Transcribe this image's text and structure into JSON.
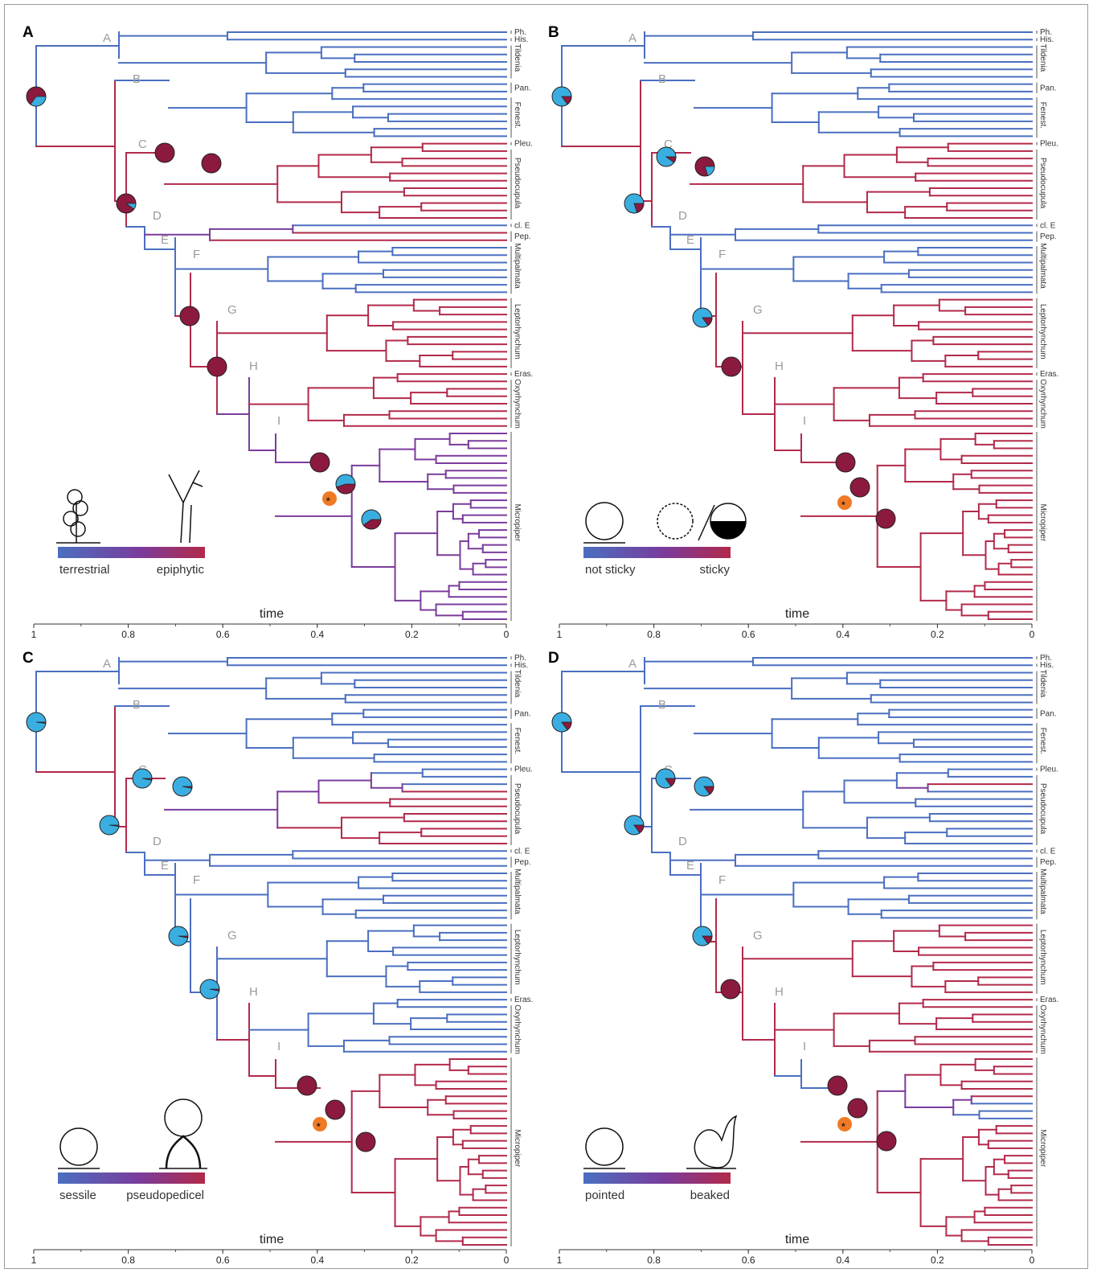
{
  "colors": {
    "blue": "#4a6fc0",
    "purple": "#7a3c9c",
    "red": "#b22a4a",
    "dark_red": "#8b1a3e",
    "pie_blue": "#3aaee0",
    "star": "#f07a24"
  },
  "axis": {
    "ticks": [
      "1",
      "0.8",
      "0.6",
      "0.4",
      "0.2",
      "0"
    ],
    "label": "time"
  },
  "clade_letters": [
    "A",
    "B",
    "C",
    "D",
    "E",
    "F",
    "G",
    "H",
    "I"
  ],
  "taxa": {
    "ph": "Ph.",
    "his": "His.",
    "tildenia": "Tildenia",
    "pan": "Pan.",
    "fenest": "Fenest.",
    "pleu": "Pleu.",
    "pseudocupula": "Pseudocupula",
    "cle": "cl. E",
    "pep": "Pep.",
    "multipalmata": "Multipalmata",
    "leptorhynchum": "Leptorhynchum",
    "eras": "Eras.",
    "oxyrhynchum": "Oxyrhynchum",
    "micropiper": "Micropiper"
  },
  "star_symbol": "*",
  "panels": [
    {
      "id": "A",
      "legend_left": "terrestrial",
      "legend_right": "epiphytic",
      "icons": [
        "terrestrial-plant-icon",
        "epiphyte-tree-icon"
      ]
    },
    {
      "id": "B",
      "legend_left": "not sticky",
      "legend_right": "sticky",
      "icons": [
        "smooth-fruit-icon",
        "sticky-fruit-icon"
      ]
    },
    {
      "id": "C",
      "legend_left": "sessile",
      "legend_right": "pseudopedicel",
      "icons": [
        "sessile-fruit-icon",
        "pseudopedicel-fruit-icon"
      ]
    },
    {
      "id": "D",
      "legend_left": "pointed",
      "legend_right": "beaked",
      "icons": [
        "pointed-fruit-icon",
        "beaked-fruit-icon"
      ]
    }
  ]
}
